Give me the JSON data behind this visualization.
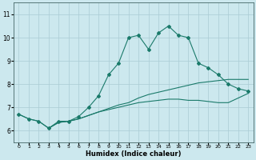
{
  "title": "",
  "xlabel": "Humidex (Indice chaleur)",
  "background_color": "#cce8ee",
  "grid_color": "#aaccd4",
  "line_color": "#1a7a6a",
  "xlim": [
    -0.5,
    23.5
  ],
  "ylim": [
    5.5,
    11.5
  ],
  "yticks": [
    6,
    7,
    8,
    9,
    10,
    11
  ],
  "xticks": [
    0,
    1,
    2,
    3,
    4,
    5,
    6,
    7,
    8,
    9,
    10,
    11,
    12,
    13,
    14,
    15,
    16,
    17,
    18,
    19,
    20,
    21,
    22,
    23
  ],
  "line1_x": [
    0,
    1,
    2,
    3,
    4,
    5,
    6,
    7,
    8,
    9,
    10,
    11,
    12,
    13,
    14,
    15,
    16,
    17,
    18,
    19,
    20,
    21,
    22,
    23
  ],
  "line1_y": [
    6.7,
    6.5,
    6.4,
    6.1,
    6.4,
    6.4,
    6.6,
    7.0,
    7.5,
    8.4,
    8.9,
    10.0,
    10.1,
    9.5,
    10.2,
    10.5,
    10.1,
    10.0,
    8.9,
    8.7,
    8.4,
    8.0,
    7.8,
    7.7
  ],
  "line2_x": [
    0,
    1,
    2,
    3,
    4,
    5,
    6,
    7,
    8,
    9,
    10,
    11,
    12,
    13,
    14,
    15,
    16,
    17,
    18,
    19,
    20,
    21,
    22,
    23
  ],
  "line2_y": [
    6.7,
    6.5,
    6.4,
    6.1,
    6.35,
    6.4,
    6.5,
    6.65,
    6.8,
    6.9,
    7.0,
    7.1,
    7.2,
    7.25,
    7.3,
    7.35,
    7.35,
    7.3,
    7.3,
    7.25,
    7.2,
    7.2,
    7.4,
    7.6
  ],
  "line3_x": [
    3,
    4,
    5,
    6,
    7,
    8,
    9,
    10,
    11,
    12,
    13,
    14,
    15,
    16,
    17,
    18,
    19,
    20,
    21,
    22,
    23
  ],
  "line3_y": [
    6.1,
    6.35,
    6.4,
    6.5,
    6.65,
    6.8,
    6.95,
    7.1,
    7.2,
    7.4,
    7.55,
    7.65,
    7.75,
    7.85,
    7.95,
    8.05,
    8.1,
    8.15,
    8.2,
    8.2,
    8.2
  ]
}
